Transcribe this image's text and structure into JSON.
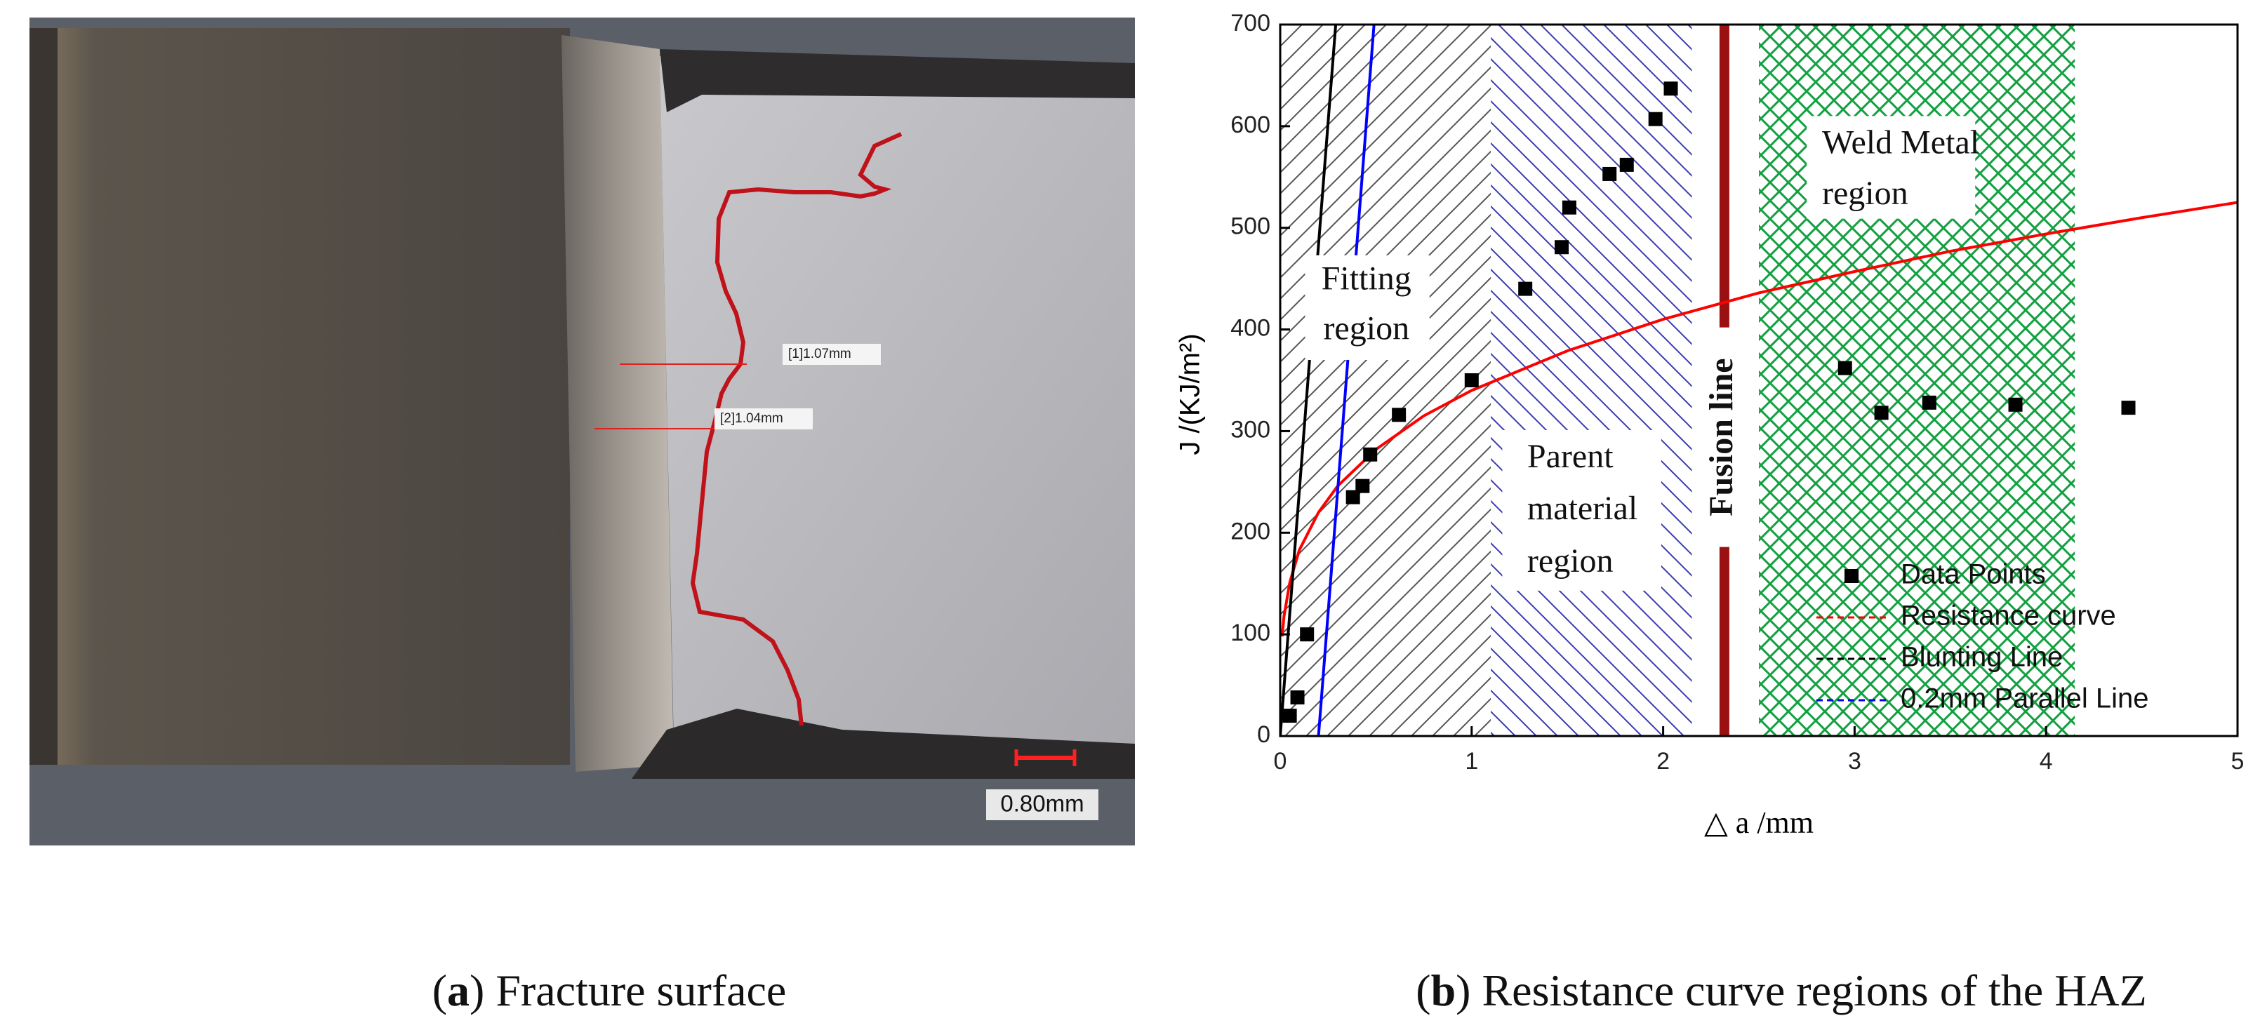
{
  "panel_a": {
    "caption": [
      "(",
      "a",
      ") Fracture surface"
    ],
    "measurements": [
      "[1]1.07mm",
      "[2]1.04mm"
    ],
    "scale_bar": "0.80mm"
  },
  "chart_data": {
    "type": "scatter",
    "caption": [
      "(",
      "b",
      ") Resistance curve regions of the HAZ"
    ],
    "xlabel": "△ a /mm",
    "ylabel": "J /(KJ/m²)",
    "xlim": [
      0,
      5
    ],
    "ylim": [
      0,
      700
    ],
    "xticks": [
      0,
      1,
      2,
      3,
      4,
      5
    ],
    "yticks": [
      0,
      100,
      200,
      300,
      400,
      500,
      600,
      700
    ],
    "legend": "lower right",
    "series": [
      {
        "name": "Data Points",
        "mode": "markers",
        "color": "#000000",
        "x": [
          0.05,
          0.09,
          0.14,
          0.38,
          0.43,
          0.47,
          0.62,
          1.0,
          1.28,
          1.47,
          1.51,
          1.72,
          1.81,
          1.96,
          2.04,
          2.95,
          3.14,
          3.39,
          3.84,
          4.43
        ],
        "values": [
          20,
          38,
          100,
          235,
          246,
          277,
          316,
          350,
          440,
          481,
          520,
          553,
          562,
          607,
          637,
          362,
          318,
          328,
          326,
          323
        ]
      },
      {
        "name": "Resistance curve",
        "mode": "line",
        "color": "#ff0000",
        "x": [
          0.01,
          0.02,
          0.05,
          0.1,
          0.2,
          0.3,
          0.5,
          0.75,
          1,
          1.5,
          2,
          2.5,
          3,
          3.5,
          4,
          4.5,
          5
        ],
        "values": [
          98,
          118,
          151,
          183,
          220,
          246,
          282,
          315,
          340,
          379,
          410,
          436,
          457,
          477,
          494,
          510,
          525
        ]
      },
      {
        "name": "Blunting Line",
        "mode": "line",
        "color": "#000000",
        "x": [
          0,
          0.29
        ],
        "values": [
          0,
          700
        ]
      },
      {
        "name": "0.2mm Parallel Line",
        "mode": "line",
        "color": "#0000ff",
        "x": [
          0.2,
          0.49
        ],
        "values": [
          0,
          700
        ]
      }
    ],
    "regions": [
      {
        "label": [
          "Fitting",
          "region"
        ],
        "x": [
          0,
          1.1
        ],
        "pattern": "diagonal",
        "color": "#555555"
      },
      {
        "label": [
          "Parent",
          "material",
          "region"
        ],
        "x": [
          1.1,
          2.15
        ],
        "pattern": "backslash",
        "color": "#3a3ab0"
      },
      {
        "label": [
          "Weld Metal",
          "region"
        ],
        "x": [
          2.5,
          4.15
        ],
        "pattern": "crosshatch",
        "color": "#12a040"
      }
    ],
    "fusion_line": {
      "label": "Fusion line",
      "x": 2.32,
      "color": "#9b1010"
    }
  }
}
